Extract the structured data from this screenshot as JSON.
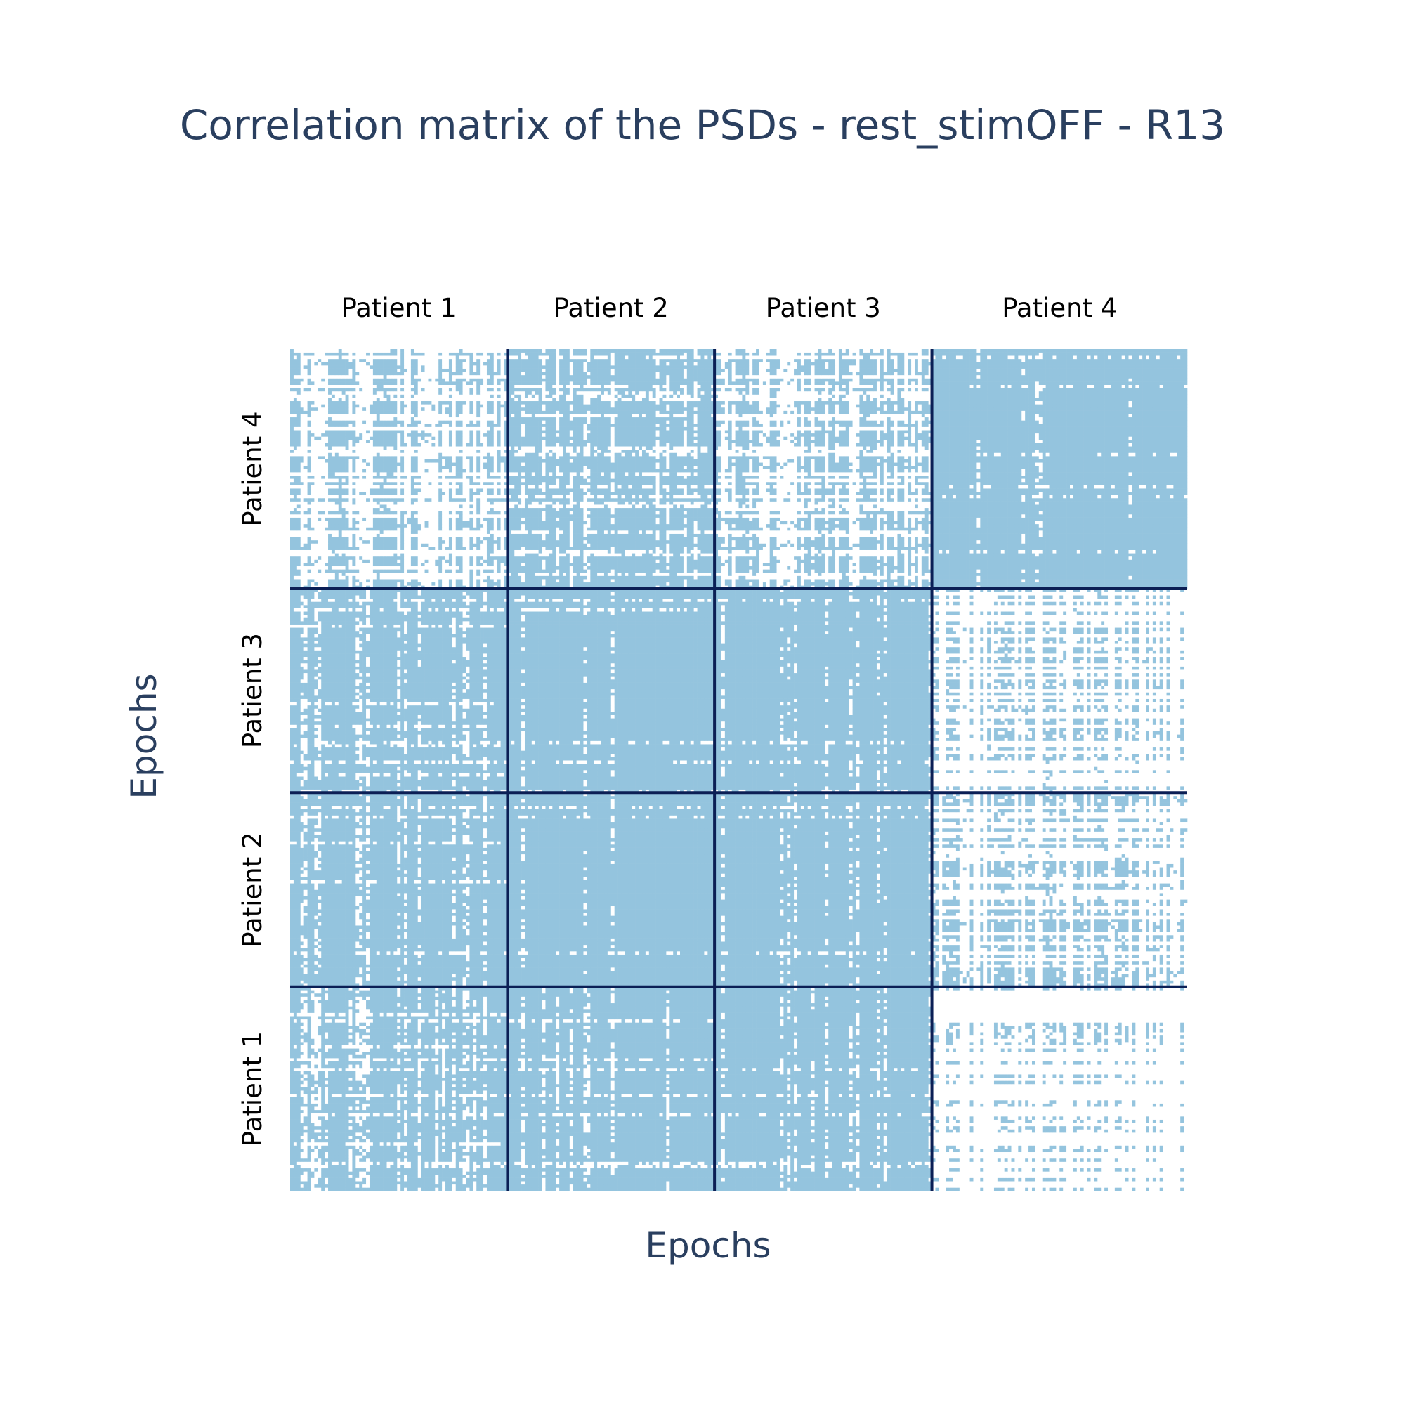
{
  "chart_data": {
    "type": "heatmap",
    "title": "Correlation matrix of the PSDs - rest_stimOFF - R13",
    "xlabel": "Epochs",
    "ylabel": "Epochs",
    "groups": [
      "Patient 1",
      "Patient 2",
      "Patient 3",
      "Patient 4"
    ],
    "x_group_labels": [
      "Patient 1",
      "Patient 2",
      "Patient 3",
      "Patient 4"
    ],
    "y_group_labels_bottom_to_top": [
      "Patient 1",
      "Patient 2",
      "Patient 3",
      "Patient 4"
    ],
    "epochs_per_group": [
      63,
      60,
      63,
      74
    ],
    "value_range": [
      0,
      1
    ],
    "cell_colors": {
      "high": "#94c4de",
      "low": "#ffffff"
    },
    "separator_color": "#0b1f55",
    "block_mean_correlation": [
      [
        0.82,
        0.85,
        0.88,
        0.55
      ],
      [
        0.86,
        0.9,
        0.9,
        0.65
      ],
      [
        0.86,
        0.9,
        0.91,
        0.62
      ],
      [
        0.7,
        0.82,
        0.72,
        0.93
      ]
    ],
    "block_rows_note": "rows ordered Patient 1..4 (bottom to top), columns Patient 1..4 (left to right)"
  }
}
